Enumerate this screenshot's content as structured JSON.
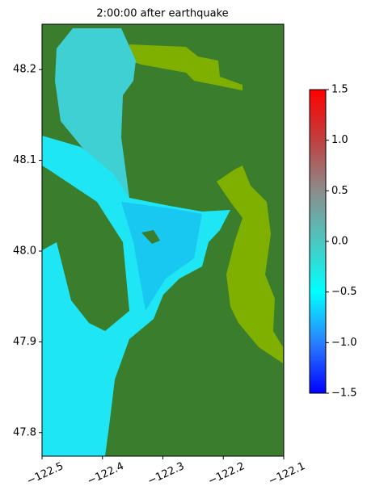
{
  "chart_data": {
    "type": "heatmap",
    "title": "2:00:00 after earthquake",
    "xlim": [
      -122.5,
      -122.1
    ],
    "xticks": [
      {
        "value": -122.5,
        "label": "−122.5"
      },
      {
        "value": -122.4,
        "label": "−122.4"
      },
      {
        "value": -122.3,
        "label": "−122.3"
      },
      {
        "value": -122.2,
        "label": "−122.2"
      },
      {
        "value": -122.1,
        "label": "−122.1"
      }
    ],
    "ylim": [
      47.774,
      48.25
    ],
    "yticks": [
      {
        "value": 47.8,
        "label": "47.8"
      },
      47.9,
      {
        "value": 48.0,
        "label": "48.0"
      },
      48.1,
      48.2
    ],
    "land_color": "#3a7d2c",
    "colorbar": {
      "lim": [
        -1.5,
        1.5
      ],
      "ticks": [
        {
          "value": -1.5,
          "label": "−1.5"
        },
        {
          "value": -1.0,
          "label": "−1.0"
        },
        {
          "value": -0.5,
          "label": "−0.5"
        },
        {
          "value": 0.0,
          "label": "0.0"
        },
        0.5,
        {
          "value": 1.0,
          "label": "1.0"
        },
        1.5
      ],
      "colors": [
        "#0000ff",
        "#2a7fff",
        "#00ffff",
        "#4cc7c0",
        "#8c8c8c",
        "#c04040",
        "#ff0000"
      ]
    }
  }
}
